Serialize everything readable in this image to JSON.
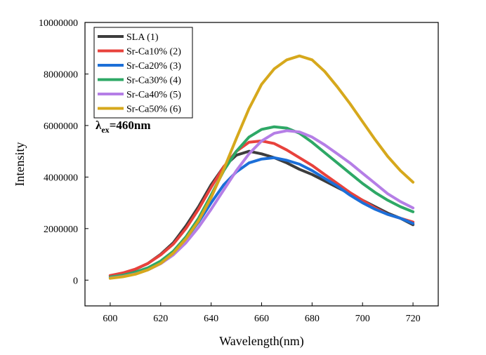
{
  "chart_data": {
    "type": "line",
    "xlabel": "Wavelength(nm)",
    "ylabel": "Intensity",
    "xlim": [
      590,
      730
    ],
    "ylim": [
      -1000000,
      10000000
    ],
    "xticks": [
      600,
      620,
      640,
      660,
      680,
      700,
      720
    ],
    "yticks": [
      0,
      2000000,
      4000000,
      6000000,
      8000000,
      10000000
    ],
    "xtick_labels": [
      "600",
      "620",
      "640",
      "660",
      "680",
      "700",
      "720"
    ],
    "ytick_labels": [
      "0",
      "2000000",
      "4000000",
      "6000000",
      "8000000",
      "10000000"
    ],
    "grid": false,
    "legend_position": "top-left",
    "annotation": {
      "lambda": "λ",
      "subscript": "ex",
      "value": "=460nm"
    },
    "series": [
      {
        "name": "SLA (1)",
        "color": "#3c3c3c",
        "x": [
          600,
          605,
          610,
          615,
          620,
          625,
          630,
          635,
          640,
          645,
          650,
          655,
          660,
          665,
          670,
          675,
          680,
          685,
          690,
          695,
          700,
          705,
          710,
          715,
          720
        ],
        "y": [
          170000,
          260000,
          420000,
          650000,
          1000000,
          1450000,
          2100000,
          2850000,
          3700000,
          4400000,
          4850000,
          5000000,
          4900000,
          4750000,
          4550000,
          4300000,
          4100000,
          3850000,
          3600000,
          3350000,
          3100000,
          2850000,
          2600000,
          2400000,
          2150000
        ]
      },
      {
        "name": "Sr-Ca10% (2)",
        "color": "#e8423c",
        "x": [
          600,
          605,
          610,
          615,
          620,
          625,
          630,
          635,
          640,
          645,
          650,
          655,
          660,
          665,
          670,
          675,
          680,
          685,
          690,
          695,
          700,
          705,
          710,
          715,
          720
        ],
        "y": [
          180000,
          280000,
          430000,
          650000,
          980000,
          1400000,
          2000000,
          2750000,
          3600000,
          4400000,
          5000000,
          5350000,
          5400000,
          5300000,
          5050000,
          4750000,
          4450000,
          4100000,
          3750000,
          3400000,
          3100000,
          2800000,
          2550000,
          2400000,
          2250000
        ]
      },
      {
        "name": "Sr-Ca20% (3)",
        "color": "#1c6fd8",
        "x": [
          600,
          605,
          610,
          615,
          620,
          625,
          630,
          635,
          640,
          645,
          650,
          655,
          660,
          665,
          670,
          675,
          680,
          685,
          690,
          695,
          700,
          705,
          710,
          715,
          720
        ],
        "y": [
          100000,
          170000,
          290000,
          460000,
          720000,
          1080000,
          1600000,
          2250000,
          3000000,
          3700000,
          4200000,
          4550000,
          4700000,
          4750000,
          4650000,
          4500000,
          4250000,
          3950000,
          3650000,
          3300000,
          3000000,
          2750000,
          2550000,
          2400000,
          2200000
        ]
      },
      {
        "name": "Sr-Ca30% (4)",
        "color": "#2ea866",
        "x": [
          600,
          605,
          610,
          615,
          620,
          625,
          630,
          635,
          640,
          645,
          650,
          655,
          660,
          665,
          670,
          675,
          680,
          685,
          690,
          695,
          700,
          705,
          710,
          715,
          720
        ],
        "y": [
          120000,
          190000,
          310000,
          480000,
          740000,
          1120000,
          1680000,
          2400000,
          3300000,
          4250000,
          5000000,
          5550000,
          5850000,
          5950000,
          5900000,
          5700000,
          5350000,
          4950000,
          4550000,
          4150000,
          3750000,
          3400000,
          3100000,
          2850000,
          2650000
        ]
      },
      {
        "name": "Sr-Ca40% (5)",
        "color": "#b57ee6",
        "x": [
          600,
          605,
          610,
          615,
          620,
          625,
          630,
          635,
          640,
          645,
          650,
          655,
          660,
          665,
          670,
          675,
          680,
          685,
          690,
          695,
          700,
          705,
          710,
          715,
          720
        ],
        "y": [
          80000,
          140000,
          240000,
          400000,
          640000,
          980000,
          1450000,
          2050000,
          2750000,
          3500000,
          4250000,
          4900000,
          5400000,
          5700000,
          5800000,
          5750000,
          5550000,
          5250000,
          4900000,
          4550000,
          4150000,
          3750000,
          3350000,
          3050000,
          2800000
        ]
      },
      {
        "name": "Sr-Ca50% (6)",
        "color": "#d6a81c",
        "x": [
          600,
          605,
          610,
          615,
          620,
          625,
          630,
          635,
          640,
          645,
          650,
          655,
          660,
          665,
          670,
          675,
          680,
          685,
          690,
          695,
          700,
          705,
          710,
          715,
          720
        ],
        "y": [
          70000,
          130000,
          230000,
          400000,
          650000,
          1050000,
          1600000,
          2300000,
          3200000,
          4300000,
          5500000,
          6650000,
          7600000,
          8200000,
          8550000,
          8700000,
          8550000,
          8100000,
          7500000,
          6850000,
          6150000,
          5450000,
          4800000,
          4250000,
          3800000
        ]
      }
    ]
  }
}
